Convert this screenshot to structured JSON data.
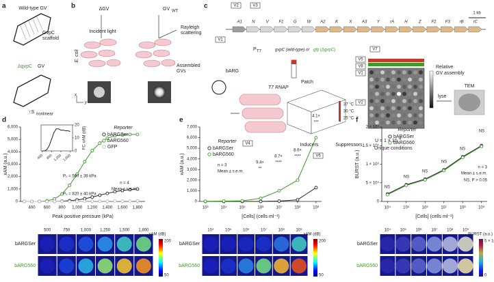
{
  "figure": {
    "panel_labels": [
      "a",
      "b",
      "c",
      "d",
      "e",
      "f"
    ],
    "a": {
      "wild_type": "Wild-type GV",
      "scaffold_1": "GvpC",
      "scaffold_2": "scaffold",
      "mutant": "ΔgvpC",
      "mutant_suffix": "GV",
      "nonlinear": "↑S",
      "nonlinear_sub": "nonlinear"
    },
    "b": {
      "knockout": "ΔGV",
      "wild_type": "GV",
      "wild_type_sub": "WT",
      "incident": "Incident light",
      "rayleigh_1": "Rayleigh",
      "rayleigh_2": "scattering",
      "assembled_1": "Assembled",
      "assembled_2": "GVs",
      "host": "E. coli",
      "axis_x": "x",
      "axis_y": "y"
    },
    "c": {
      "scale": "1 kb",
      "genes": [
        "A1",
        "N",
        "V",
        "F1",
        "G",
        "W",
        "A2",
        "K",
        "X",
        "A3",
        "Y",
        "rA",
        "H",
        "Z",
        "F2",
        "F3",
        "rB",
        "rC"
      ],
      "promoter": "P",
      "promoter_sub": "T7",
      "gene_note_a": "gvpC (wild-type) or",
      "gene_note_b": "gfp",
      "gene_note_c": "(ΔgvpC)",
      "plasmid": "bARG",
      "polymerase": "T7 RNAP",
      "patch": "Patch",
      "temps": [
        "37 °C",
        "30 °C",
        "25 °C"
      ],
      "inducers": "Inducers",
      "suppressors": "Suppressors",
      "vector_labels": [
        "V2",
        "V3",
        "V1",
        "V4",
        "V5",
        "V8",
        "V1",
        "V7",
        "V2",
        "V6"
      ],
      "relative_1": "Relative",
      "relative_2": "GV assembly",
      "lyse": "lyse",
      "tem": "TEM",
      "conditions": "U = 1 × 10",
      "conditions_exp": "4",
      "unique": "Unique conditions"
    },
    "strips": [
      {
        "columns": [
          "500",
          "750",
          "1,000",
          "1,250",
          "1,500",
          "1,800"
        ],
        "rows": [
          "bARGSer",
          "bARG560"
        ],
        "colorbar": {
          "label": "xAM (dB)",
          "max": "200",
          "min": "50"
        }
      },
      {
        "columns": [
          "10⁴",
          "10⁵",
          "10⁶",
          "10⁷",
          "10⁸",
          "10⁹"
        ],
        "rows": [
          "bARGSer",
          "bARG560"
        ],
        "colorbar": {
          "label": "xAM (dB)",
          "max": "200",
          "min": "50"
        }
      },
      {
        "columns": [
          "10⁴",
          "10⁵",
          "10⁶",
          "10⁷",
          "10⁸",
          "10⁹"
        ],
        "rows": [
          "bARGSer",
          "bARG560"
        ],
        "colorbar": {
          "label": "BURST (a.u.)",
          "max": "5 × 10⁵",
          "min": "0"
        }
      }
    ]
  },
  "chart_data": [
    {
      "type": "line",
      "xlabel": "Peak positive pressure (kPa)",
      "ylabel": "xAM (a.u.)",
      "legend_title": "Reporter",
      "x": [
        300,
        400,
        500,
        600,
        700,
        800,
        900,
        1000,
        1100,
        1200,
        1300,
        1400,
        1500,
        1600,
        1700,
        1800
      ],
      "series": [
        {
          "name": "bARGSer",
          "color": "#222222",
          "values": [
            0,
            0,
            0,
            0,
            0,
            20,
            60,
            120,
            220,
            350,
            500,
            650,
            780,
            880,
            950,
            1000
          ]
        },
        {
          "name": "bARG560",
          "color": "#3c9a2a",
          "values": [
            0,
            0,
            10,
            50,
            200,
            600,
            1300,
            2200,
            3200,
            4100,
            4700,
            5100,
            5300,
            5350,
            5400,
            5400
          ]
        },
        {
          "name": "GFP",
          "color": "#bbbbbb",
          "values": [
            0,
            0,
            0,
            0,
            0,
            0,
            0,
            10,
            10,
            20,
            20,
            20,
            30,
            30,
            30,
            40
          ]
        }
      ],
      "xlim": [
        250,
        1900
      ],
      "ylim": [
        0,
        6000
      ],
      "xticks": [
        400,
        600,
        800,
        {
          "value": 1000,
          "label": "1,000"
        },
        {
          "value": 1200,
          "label": "1,200"
        },
        {
          "value": 1400,
          "label": "1,400"
        },
        {
          "value": 1600,
          "label": "1,600"
        },
        {
          "value": 1800,
          "label": "1,800"
        }
      ],
      "yticks": [
        0,
        {
          "value": 1000,
          "label": "1,000"
        },
        {
          "value": 2000,
          "label": "2,000"
        },
        {
          "value": 3000,
          "label": "3,000"
        },
        {
          "value": 4000,
          "label": "4,000"
        },
        {
          "value": 5000,
          "label": "5,000"
        },
        {
          "value": 6000,
          "label": "6,000"
        }
      ],
      "annotations": [
        "P₀ = 560 ± 38 kPa",
        "P₀ = 820 ± 40 kPa",
        "n = 4",
        "Mean ± s.e.m."
      ],
      "inset": {
        "ylabel": "FC xAM (dB)",
        "x": [
          400,
          500,
          600,
          700,
          800,
          900,
          1000,
          1100,
          1200,
          1300,
          1400,
          1500,
          1600
        ],
        "values": [
          0,
          0,
          1,
          4,
          9,
          14,
          17,
          17,
          16,
          16,
          15.5,
          15.5,
          15
        ],
        "color": "#222222",
        "xlim": [
          350,
          1700
        ],
        "ylim": [
          0,
          20
        ],
        "xticks": [
          400,
          800,
          {
            "value": 1200,
            "label": "1,200"
          },
          {
            "value": 1600,
            "label": "1,600"
          }
        ],
        "yticks": [
          0,
          10,
          20
        ]
      }
    },
    {
      "type": "line",
      "xscale": "log",
      "xlabel": "[Cells] (cells ml⁻¹)",
      "ylabel": "xAM (a.u.)",
      "legend_title": "Reporter",
      "x": [
        1000,
        10000,
        100000,
        1000000,
        10000000,
        100000000,
        1000000000
      ],
      "series": [
        {
          "name": "bARGSer",
          "color": "#222222",
          "values": [
            0,
            0,
            0,
            0,
            30,
            150,
            1300
          ]
        },
        {
          "name": "bARG560",
          "color": "#3c9a2a",
          "values": [
            20,
            30,
            60,
            300,
            1000,
            2000,
            6000
          ]
        }
      ],
      "xlim": [
        500,
        2000000000
      ],
      "ylim": [
        0,
        7000
      ],
      "xticks": [
        {
          "value": 1000,
          "label": "10³"
        },
        {
          "value": 10000,
          "label": "10⁴"
        },
        {
          "value": 100000,
          "label": "10⁵"
        },
        {
          "value": 1000000,
          "label": "10⁶"
        },
        {
          "value": 10000000,
          "label": "10⁷"
        },
        {
          "value": 100000000,
          "label": "10⁸"
        },
        {
          "value": 1000000000,
          "label": "10⁹"
        }
      ],
      "yticks": [
        0,
        {
          "value": 1000,
          "label": "1,000"
        },
        {
          "value": 2000,
          "label": "2,000"
        },
        {
          "value": 3000,
          "label": "3,000"
        },
        {
          "value": 4000,
          "label": "4,000"
        },
        {
          "value": 5000,
          "label": "5,000"
        },
        {
          "value": 6000,
          "label": "6,000"
        },
        {
          "value": 7000,
          "label": "7,000"
        }
      ],
      "annotations": [
        "9.4×",
        "**",
        "8.7×",
        "****",
        "8.6×",
        "****",
        "4.1×",
        "***",
        "n = 3",
        "Mean ± s.e.m."
      ]
    },
    {
      "type": "line",
      "xscale": "log",
      "xlabel": "[Cells] (cells ml⁻¹)",
      "ylabel": "BURST (a.u.)",
      "legend_title": "Reporter",
      "x": [
        10000,
        100000,
        1000000,
        10000000,
        100000000,
        1000000000
      ],
      "series": [
        {
          "name": "bARGSer",
          "color": "#222222",
          "values": [
            200000,
            450000,
            600000,
            850000,
            1200000,
            1500000
          ]
        },
        {
          "name": "bARG560",
          "color": "#3c9a2a",
          "values": [
            180000,
            430000,
            580000,
            830000,
            1180000,
            1480000
          ]
        }
      ],
      "xlim": [
        5000,
        2000000000
      ],
      "ylim": [
        0,
        2000000
      ],
      "xticks": [
        {
          "value": 10000,
          "label": "10⁴"
        },
        {
          "value": 100000,
          "label": "10⁵"
        },
        {
          "value": 1000000,
          "label": "10⁶"
        },
        {
          "value": 10000000,
          "label": "10⁷"
        },
        {
          "value": 100000000,
          "label": "10⁸"
        },
        {
          "value": 1000000000,
          "label": "10⁹"
        }
      ],
      "yticks": [
        0,
        {
          "value": 500000,
          "label": "5 × 10⁵"
        },
        {
          "value": 1000000,
          "label": "1 × 10⁶"
        },
        {
          "value": 1500000,
          "label": "1.5 × 10⁶"
        },
        {
          "value": 2000000,
          "label": "2 × 10⁶"
        }
      ],
      "annotations": [
        "NS",
        "NS",
        "NS",
        "NS",
        "NS",
        "NS",
        "n = 3",
        "Mean ± s.e.m.",
        "NS, P > 0.05"
      ]
    }
  ]
}
